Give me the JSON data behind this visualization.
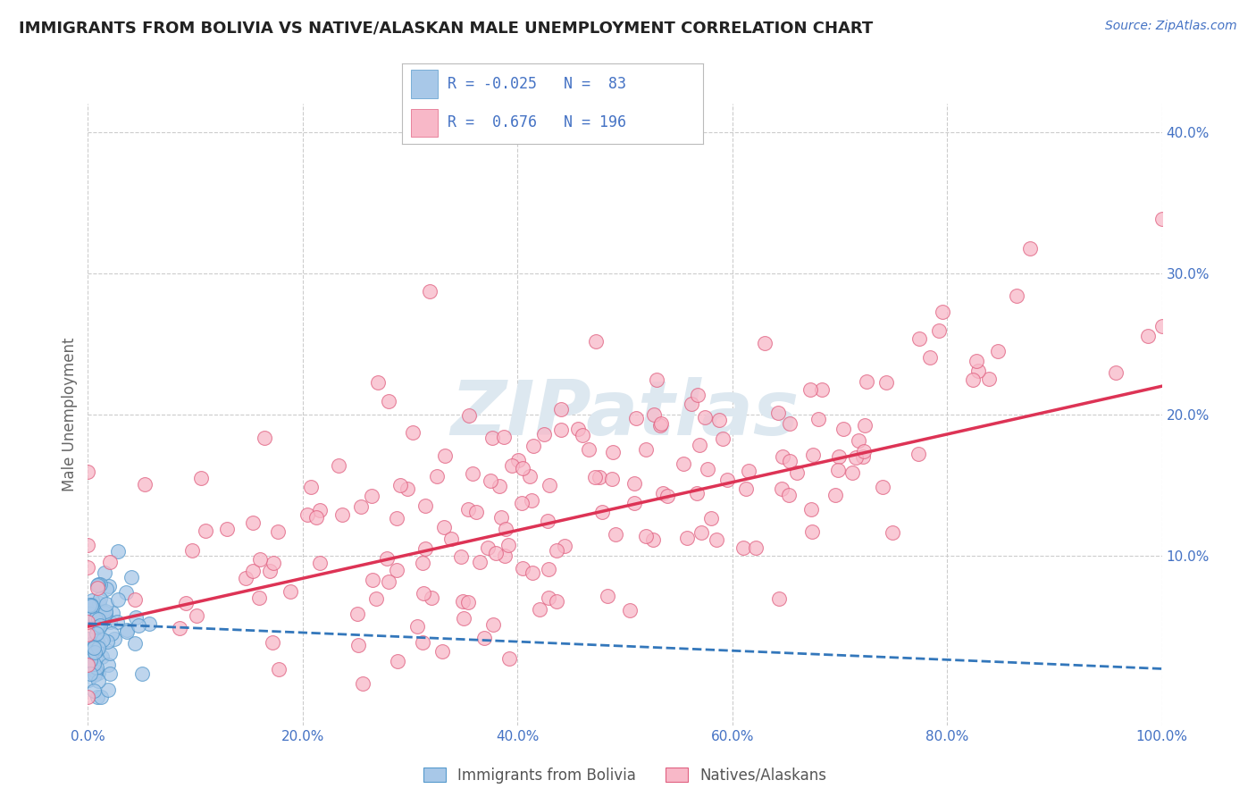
{
  "title": "IMMIGRANTS FROM BOLIVIA VS NATIVE/ALASKAN MALE UNEMPLOYMENT CORRELATION CHART",
  "source_text": "Source: ZipAtlas.com",
  "ylabel": "Male Unemployment",
  "xlim": [
    0,
    100
  ],
  "ylim": [
    -2,
    42
  ],
  "legend_r1": "-0.025",
  "legend_n1": "83",
  "legend_r2": "0.676",
  "legend_n2": "196",
  "blue_color": "#a8c8e8",
  "blue_edge_color": "#5599cc",
  "pink_color": "#f8b8c8",
  "pink_edge_color": "#e06080",
  "blue_line_color": "#3377bb",
  "pink_line_color": "#dd3355",
  "title_color": "#222222",
  "source_color": "#4472c4",
  "watermark_color": "#dde8f0",
  "tick_label_color": "#4472c4",
  "bg_color": "#ffffff",
  "grid_color": "#cccccc",
  "n_blue": 83,
  "n_pink": 196,
  "pink_line_x0": 0,
  "pink_line_y0": 5.0,
  "pink_line_x1": 100,
  "pink_line_y1": 22.0,
  "blue_line_x0": 0,
  "blue_line_y0": 5.2,
  "blue_line_x1": 100,
  "blue_line_y1": 2.0
}
